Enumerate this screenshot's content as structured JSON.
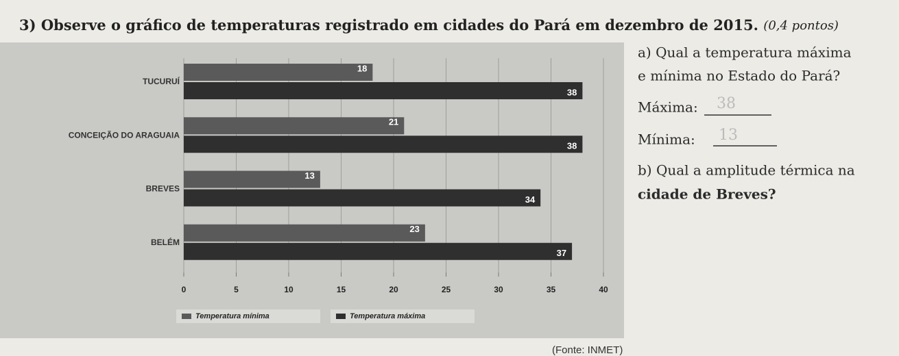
{
  "header": {
    "title": "3) Observe o gráfico de temperaturas registrado em cidades do Pará em dezembro de 2015.",
    "points": "(0,4 pontos)"
  },
  "chart_data": {
    "type": "bar",
    "orientation": "horizontal",
    "categories": [
      "TUCURUÍ",
      "CONCEIÇÃO DO ARAGUAIA",
      "BREVES",
      "BELÉM"
    ],
    "series": [
      {
        "name": "Temperatura mínima",
        "color": "#5a5a5a",
        "values": [
          18,
          21,
          13,
          23
        ]
      },
      {
        "name": "Temperatura máxima",
        "color": "#2f2f2f",
        "values": [
          38,
          38,
          34,
          37
        ]
      }
    ],
    "xlim": [
      0,
      40
    ],
    "xticks": [
      0,
      5,
      10,
      15,
      20,
      25,
      30,
      35,
      40
    ],
    "grid": true,
    "legend": "bottom"
  },
  "questions": {
    "a": [
      "a) Qual a temperatura máxima",
      "e mínima no Estado do Pará?"
    ],
    "max_label": "Máxima:",
    "max_answer": "38",
    "min_label": "Mínima:",
    "min_answer": "13",
    "b": [
      "b) Qual a amplitude térmica na",
      "cidade de Breves?"
    ]
  },
  "source": "(Fonte: INMET)"
}
